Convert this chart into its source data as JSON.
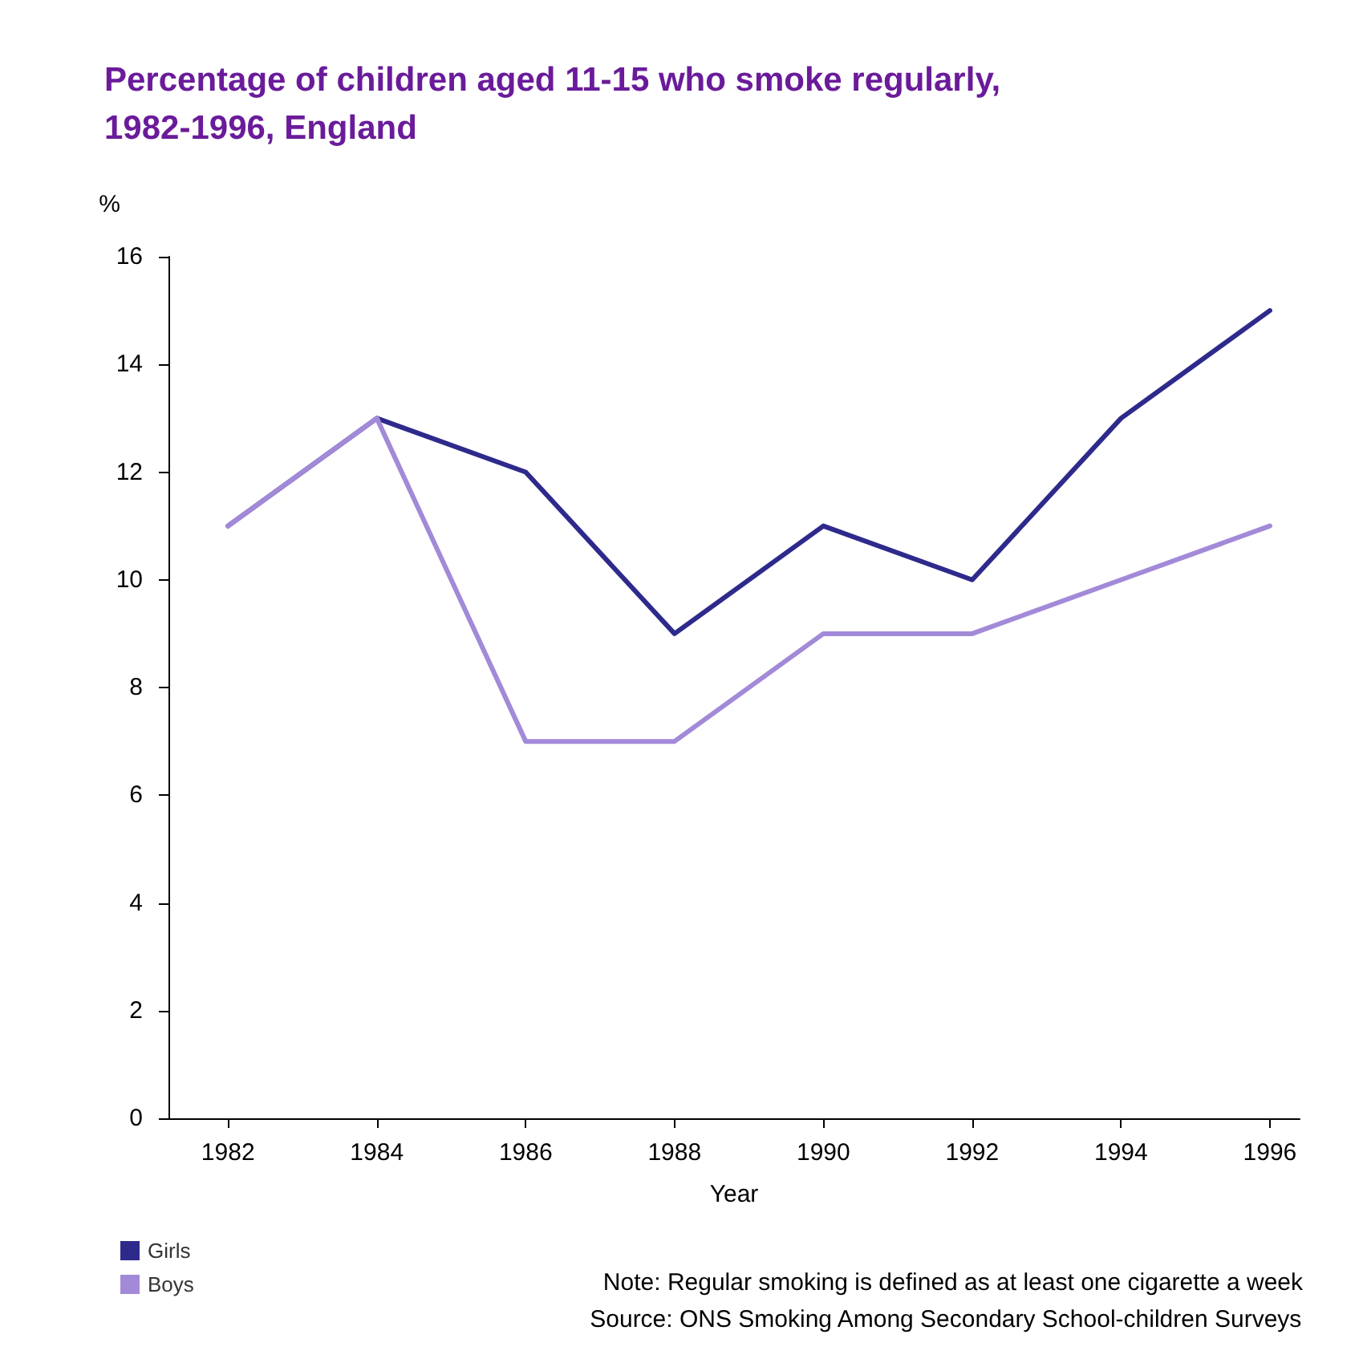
{
  "chart_data": {
    "type": "line",
    "title": "Percentage of children aged 11-15 who smoke regularly,\n1982-1996, England",
    "ylabel": "%",
    "xlabel": "Year",
    "x": [
      1982,
      1984,
      1986,
      1988,
      1990,
      1992,
      1994,
      1996
    ],
    "xlim": [
      1981.2,
      1996.4
    ],
    "xticks": [
      1982,
      1984,
      1986,
      1988,
      1990,
      1992,
      1994,
      1996
    ],
    "ylim": [
      0,
      16
    ],
    "yticks": [
      0,
      2,
      4,
      6,
      8,
      10,
      12,
      14,
      16
    ],
    "series": [
      {
        "name": "Girls",
        "color": "#2e2a8c",
        "values": [
          11,
          13,
          12,
          9,
          11,
          10,
          13,
          15
        ]
      },
      {
        "name": "Boys",
        "color": "#a28ad8",
        "values": [
          11,
          13,
          7,
          7,
          9,
          9,
          10,
          11
        ]
      }
    ],
    "grid": false,
    "legend": "bottom left",
    "marker": "none",
    "line_style": "solid",
    "annotations": [
      "Note: Regular smoking is defined as at least one cigarette a week",
      "Source: ONS Smoking Among Secondary School-children Surveys"
    ]
  }
}
